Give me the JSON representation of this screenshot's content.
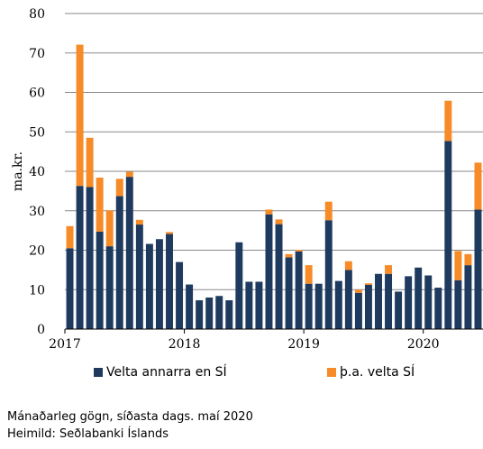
{
  "chart_data": {
    "type": "bar",
    "stacked": true,
    "ylabel": "ma.kr.",
    "ylim": [
      0,
      80
    ],
    "yticks": [
      "0",
      "10",
      "20",
      "30",
      "40",
      "50",
      "60",
      "70",
      "80"
    ],
    "x_start": "2017-01",
    "xtick_labels": [
      "2017",
      "2018",
      "2019",
      "2020"
    ],
    "grid": true,
    "legend_position": "bottom",
    "series": [
      {
        "name": "Velta annarra en SÍ",
        "color": "#1f3a5f",
        "values": [
          20.5,
          36.3,
          36.0,
          24.7,
          21.0,
          33.7,
          38.6,
          26.5,
          21.6,
          22.8,
          24.1,
          17.0,
          11.3,
          7.3,
          8.0,
          8.4,
          7.3,
          22.0,
          12.0,
          12.0,
          29.1,
          26.6,
          18.2,
          19.7,
          11.5,
          11.5,
          27.6,
          12.2,
          15.0,
          9.2,
          11.2,
          14.0,
          14.0,
          9.5,
          13.4,
          15.6,
          13.6,
          10.5,
          47.7,
          12.4,
          16.2,
          30.3
        ]
      },
      {
        "name": "þ.a. velta SÍ",
        "color": "#f68b27",
        "values": [
          5.6,
          35.8,
          12.5,
          13.7,
          9.1,
          4.4,
          1.3,
          1.2,
          0,
          0,
          0.5,
          0,
          0,
          0,
          0,
          0,
          0,
          0,
          0,
          0,
          1.2,
          1.2,
          0.8,
          0.4,
          4.7,
          0,
          4.7,
          0,
          2.2,
          0.8,
          0.4,
          0,
          2.2,
          0,
          0,
          0,
          0,
          0,
          10.2,
          7.4,
          2.8,
          11.9
        ]
      }
    ]
  },
  "footer": {
    "line1": "Mánaðarleg gögn, síðasta dags. maí  2020",
    "line2": "Heimild: Seðlabanki Íslands"
  }
}
